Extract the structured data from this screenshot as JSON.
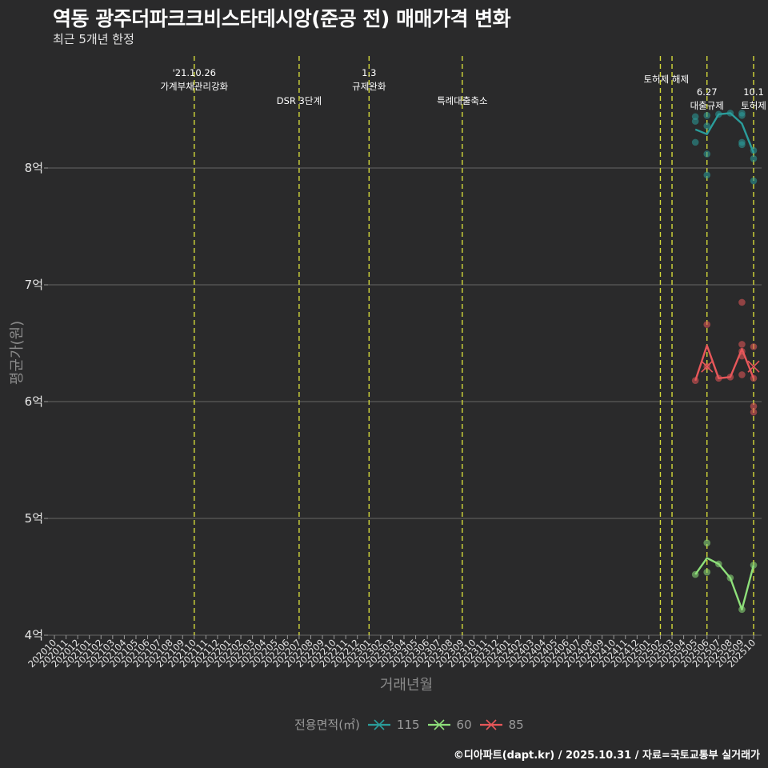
{
  "header": {
    "title": "역동 광주더파크크비스타데시앙(준공 전) 매매가격 변화",
    "subtitle": "최근 5개년 한정"
  },
  "axes": {
    "ylabel": "평균가(원)",
    "xlabel": "거래년월"
  },
  "legend": {
    "title": "전용면적(㎡)",
    "items": [
      {
        "label": "115",
        "color": "#2a9d9b"
      },
      {
        "label": "60",
        "color": "#8ee07a"
      },
      {
        "label": "85",
        "color": "#e8575a"
      }
    ]
  },
  "caption": "©디아파트(dapt.kr) / 2025.10.31 / 자료=국토교통부 실거래가",
  "colors": {
    "background": "#2a2a2b",
    "grid": "#5a5a5a",
    "event_line": "#d4d93a"
  },
  "chart_data": {
    "type": "line",
    "title": "역동 광주더파크크비스타데시앙(준공 전) 매매가격 변화",
    "subtitle": "최근 5개년 한정",
    "xlabel": "거래년월",
    "ylabel": "평균가(원)",
    "ylim": [
      4.0,
      8.95
    ],
    "yunit": "억",
    "yticks": [
      4,
      5,
      6,
      7,
      8
    ],
    "ytick_labels": [
      "4억",
      "5억",
      "6억",
      "7억",
      "8억"
    ],
    "grid": "horizontal",
    "legend_position": "bottom",
    "x_categories": [
      "202010",
      "202011",
      "202012",
      "202101",
      "202102",
      "202103",
      "202104",
      "202105",
      "202106",
      "202107",
      "202108",
      "202109",
      "202110",
      "202111",
      "202112",
      "202201",
      "202202",
      "202203",
      "202204",
      "202205",
      "202206",
      "202207",
      "202208",
      "202209",
      "202210",
      "202211",
      "202212",
      "202301",
      "202302",
      "202303",
      "202304",
      "202305",
      "202306",
      "202307",
      "202308",
      "202309",
      "202310",
      "202311",
      "202312",
      "202401",
      "202402",
      "202403",
      "202404",
      "202405",
      "202406",
      "202407",
      "202408",
      "202409",
      "202410",
      "202411",
      "202412",
      "202501",
      "202502",
      "202503",
      "202504",
      "202505",
      "202506",
      "202507",
      "202508",
      "202509",
      "202510"
    ],
    "events": [
      {
        "x": "202110",
        "label_lines": [
          "'21.10.26",
          "가계부채관리강화"
        ],
        "row": 0
      },
      {
        "x": "202207",
        "label_lines": [
          "DSR 3단계"
        ],
        "row": 2
      },
      {
        "x": "202301",
        "label_lines": [
          "1.3",
          "규제완화"
        ],
        "row": 0
      },
      {
        "x": "202309",
        "label_lines": [
          "특례대출축소"
        ],
        "row": 2
      },
      {
        "x": "202502",
        "label_lines": [],
        "row": 0
      },
      {
        "x": "202503",
        "label_lines": [
          "토허제 해제"
        ],
        "row": 1,
        "label_x": "202502.5"
      },
      {
        "x": "202506",
        "label_lines": [
          "6.27",
          "대출규제"
        ],
        "row": 3
      },
      {
        "x": "202510",
        "label_lines": [
          "10.1",
          "토허제"
        ],
        "row": 3
      }
    ],
    "series": [
      {
        "name": "115",
        "color": "#2a9d9b",
        "line": [
          {
            "x": "202505",
            "y": 8.33
          },
          {
            "x": "202506",
            "y": 8.29
          },
          {
            "x": "202507",
            "y": 8.46
          },
          {
            "x": "202508",
            "y": 8.47
          },
          {
            "x": "202509",
            "y": 8.38
          },
          {
            "x": "202510",
            "y": 8.13
          }
        ],
        "points": [
          {
            "x": "202505",
            "y": 8.44
          },
          {
            "x": "202505",
            "y": 8.4
          },
          {
            "x": "202505",
            "y": 8.22
          },
          {
            "x": "202506",
            "y": 8.45
          },
          {
            "x": "202506",
            "y": 8.36
          },
          {
            "x": "202506",
            "y": 8.12
          },
          {
            "x": "202506",
            "y": 7.94
          },
          {
            "x": "202507",
            "y": 8.46
          },
          {
            "x": "202508",
            "y": 8.47
          },
          {
            "x": "202509",
            "y": 8.47
          },
          {
            "x": "202509",
            "y": 8.45
          },
          {
            "x": "202509",
            "y": 8.22
          },
          {
            "x": "202509",
            "y": 8.2
          },
          {
            "x": "202510",
            "y": 8.15
          },
          {
            "x": "202510",
            "y": 8.08
          },
          {
            "x": "202510",
            "y": 7.89
          }
        ],
        "marks": []
      },
      {
        "name": "60",
        "color": "#8ee07a",
        "line": [
          {
            "x": "202505",
            "y": 4.52
          },
          {
            "x": "202506",
            "y": 4.66
          },
          {
            "x": "202507",
            "y": 4.61
          },
          {
            "x": "202508",
            "y": 4.49
          },
          {
            "x": "202509",
            "y": 4.22
          },
          {
            "x": "202510",
            "y": 4.6
          }
        ],
        "points": [
          {
            "x": "202505",
            "y": 4.52
          },
          {
            "x": "202506",
            "y": 4.79
          },
          {
            "x": "202506",
            "y": 4.54
          },
          {
            "x": "202507",
            "y": 4.61
          },
          {
            "x": "202508",
            "y": 4.49
          },
          {
            "x": "202509",
            "y": 4.22
          },
          {
            "x": "202510",
            "y": 4.6
          }
        ],
        "marks": []
      },
      {
        "name": "85",
        "color": "#e8575a",
        "line": [
          {
            "x": "202505",
            "y": 6.18
          },
          {
            "x": "202506",
            "y": 6.48
          },
          {
            "x": "202507",
            "y": 6.2
          },
          {
            "x": "202508",
            "y": 6.21
          },
          {
            "x": "202509",
            "y": 6.45
          },
          {
            "x": "202510",
            "y": 6.2
          }
        ],
        "points": [
          {
            "x": "202505",
            "y": 6.18
          },
          {
            "x": "202506",
            "y": 6.66
          },
          {
            "x": "202506",
            "y": 6.3
          },
          {
            "x": "202507",
            "y": 6.2
          },
          {
            "x": "202508",
            "y": 6.21
          },
          {
            "x": "202509",
            "y": 6.85
          },
          {
            "x": "202509",
            "y": 6.49
          },
          {
            "x": "202509",
            "y": 6.43
          },
          {
            "x": "202509",
            "y": 6.39
          },
          {
            "x": "202509",
            "y": 6.23
          },
          {
            "x": "202510",
            "y": 6.47
          },
          {
            "x": "202510",
            "y": 6.2
          },
          {
            "x": "202510",
            "y": 5.96
          },
          {
            "x": "202510",
            "y": 5.91
          }
        ],
        "marks": [
          {
            "x": "202506",
            "y": 6.3
          },
          {
            "x": "202510",
            "y": 6.3
          }
        ]
      }
    ]
  }
}
